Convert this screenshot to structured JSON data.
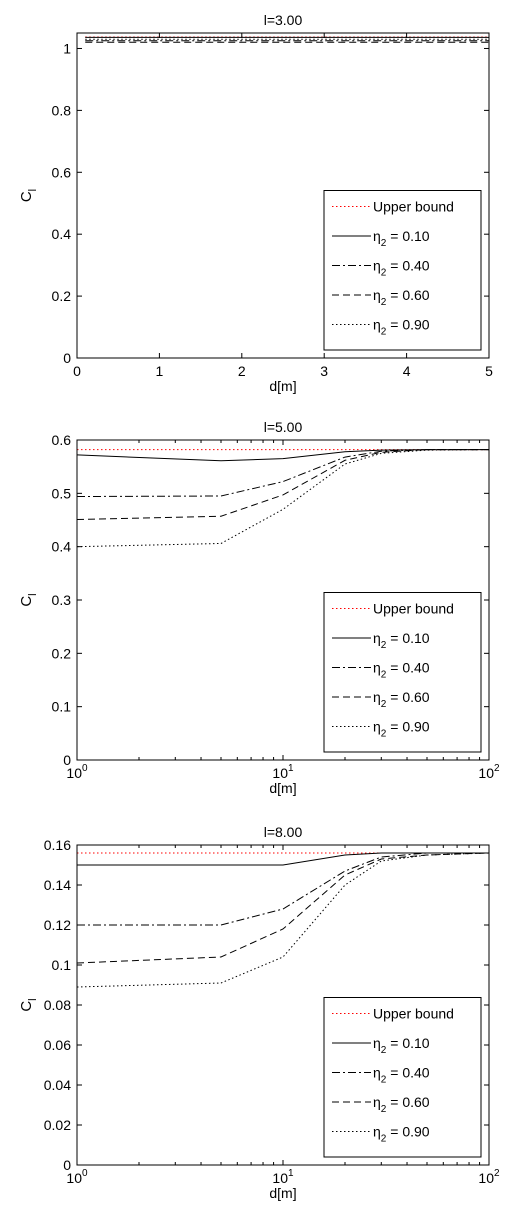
{
  "chart_data": [
    {
      "type": "line",
      "title": "l=3.00",
      "xlabel": "d[m]",
      "ylabel": "C",
      "ylabel_sub": "l",
      "xscale": "linear",
      "xlim": [
        0,
        5
      ],
      "ylim": [
        0,
        1.05
      ],
      "xticks": [
        0,
        1,
        2,
        3,
        4,
        5
      ],
      "xtick_labels": [
        "0",
        "1",
        "2",
        "3",
        "4",
        "5"
      ],
      "yticks": [
        0,
        0.2,
        0.4,
        0.6,
        0.8,
        1
      ],
      "ytick_labels": [
        "0",
        "0.2",
        "0.4",
        "0.6",
        "0.8",
        "1"
      ],
      "grid": false,
      "legend_position": "bottom-right",
      "series": [
        {
          "name": "Upper bound",
          "name_main": "Upper bound",
          "name_sub": "",
          "name_rest": "",
          "style": "dotted",
          "color": "#ff0000",
          "x": [
            0.1,
            5
          ],
          "y": [
            1.037,
            1.037
          ]
        },
        {
          "name": "η2 = 0.10",
          "name_main": "η",
          "name_sub": "2",
          "name_rest": " = 0.10",
          "style": "solid",
          "color": "#000000",
          "x": [
            0.1,
            5
          ],
          "y": [
            1.036,
            1.036
          ]
        },
        {
          "name": "η2 = 0.40",
          "name_main": "η",
          "name_sub": "2",
          "name_rest": " = 0.40",
          "style": "dashdot",
          "color": "#000000",
          "x": [
            0.1,
            5
          ],
          "y": [
            1.025,
            1.025
          ]
        },
        {
          "name": "η2 = 0.60",
          "name_main": "η",
          "name_sub": "2",
          "name_rest": " = 0.60",
          "style": "dashed",
          "color": "#000000",
          "x": [
            0.1,
            5
          ],
          "y": [
            1.02,
            1.02
          ]
        },
        {
          "name": "η2 = 0.90",
          "name_main": "η",
          "name_sub": "2",
          "name_rest": " = 0.90",
          "style": "dotted",
          "color": "#000000",
          "x": [
            0.1,
            5
          ],
          "y": [
            1.03,
            1.03
          ]
        }
      ]
    },
    {
      "type": "line",
      "title": "l=5.00",
      "xlabel": "d[m]",
      "ylabel": "C",
      "ylabel_sub": "l",
      "xscale": "log",
      "xlim": [
        1,
        100
      ],
      "ylim": [
        0,
        0.6
      ],
      "xticks": [
        1,
        10,
        100
      ],
      "xtick_labels_base": [
        "10",
        "10",
        "10"
      ],
      "xtick_labels_exp": [
        "0",
        "1",
        "2"
      ],
      "yticks": [
        0,
        0.1,
        0.2,
        0.3,
        0.4,
        0.5,
        0.6
      ],
      "ytick_labels": [
        "0",
        "0.1",
        "0.2",
        "0.3",
        "0.4",
        "0.5",
        "0.6"
      ],
      "grid": false,
      "legend_position": "bottom-right",
      "series": [
        {
          "name": "Upper bound",
          "name_main": "Upper bound",
          "name_sub": "",
          "name_rest": "",
          "style": "dotted",
          "color": "#ff0000",
          "x": [
            1,
            100
          ],
          "y": [
            0.582,
            0.582
          ]
        },
        {
          "name": "η2 = 0.10",
          "name_main": "η",
          "name_sub": "2",
          "name_rest": " = 0.10",
          "style": "solid",
          "color": "#000000",
          "x": [
            1,
            5,
            10,
            20,
            30,
            50,
            100
          ],
          "y": [
            0.572,
            0.561,
            0.565,
            0.578,
            0.581,
            0.582,
            0.582
          ]
        },
        {
          "name": "η2 = 0.40",
          "name_main": "η",
          "name_sub": "2",
          "name_rest": " = 0.40",
          "style": "dashdot",
          "color": "#000000",
          "x": [
            1,
            5,
            10,
            20,
            30,
            50,
            100
          ],
          "y": [
            0.494,
            0.495,
            0.522,
            0.568,
            0.579,
            0.582,
            0.582
          ]
        },
        {
          "name": "η2 = 0.60",
          "name_main": "η",
          "name_sub": "2",
          "name_rest": " = 0.60",
          "style": "dashed",
          "color": "#000000",
          "x": [
            1,
            5,
            10,
            20,
            30,
            50,
            100
          ],
          "y": [
            0.451,
            0.457,
            0.497,
            0.562,
            0.577,
            0.582,
            0.582
          ]
        },
        {
          "name": "η2 = 0.90",
          "name_main": "η",
          "name_sub": "2",
          "name_rest": " = 0.90",
          "style": "dotted",
          "color": "#000000",
          "x": [
            1,
            5,
            10,
            20,
            30,
            50,
            100
          ],
          "y": [
            0.4,
            0.406,
            0.47,
            0.555,
            0.575,
            0.581,
            0.582
          ]
        }
      ]
    },
    {
      "type": "line",
      "title": "l=8.00",
      "xlabel": "d[m]",
      "ylabel": "C",
      "ylabel_sub": "l",
      "xscale": "log",
      "xlim": [
        1,
        100
      ],
      "ylim": [
        0,
        0.16
      ],
      "xticks": [
        1,
        10,
        100
      ],
      "xtick_labels_base": [
        "10",
        "10",
        "10"
      ],
      "xtick_labels_exp": [
        "0",
        "1",
        "2"
      ],
      "yticks": [
        0,
        0.02,
        0.04,
        0.06,
        0.08,
        0.1,
        0.12,
        0.14,
        0.16
      ],
      "ytick_labels": [
        "0",
        "0.02",
        "0.04",
        "0.06",
        "0.08",
        "0.1",
        "0.12",
        "0.14",
        "0.16"
      ],
      "grid": false,
      "legend_position": "bottom-right",
      "series": [
        {
          "name": "Upper bound",
          "name_main": "Upper bound",
          "name_sub": "",
          "name_rest": "",
          "style": "dotted",
          "color": "#ff0000",
          "x": [
            1,
            100
          ],
          "y": [
            0.156,
            0.156
          ]
        },
        {
          "name": "η2 = 0.10",
          "name_main": "η",
          "name_sub": "2",
          "name_rest": " = 0.10",
          "style": "solid",
          "color": "#000000",
          "x": [
            1,
            5,
            10,
            20,
            30,
            50,
            100
          ],
          "y": [
            0.15,
            0.15,
            0.15,
            0.155,
            0.156,
            0.156,
            0.156
          ]
        },
        {
          "name": "η2 = 0.40",
          "name_main": "η",
          "name_sub": "2",
          "name_rest": " = 0.40",
          "style": "dashdot",
          "color": "#000000",
          "x": [
            1,
            5,
            10,
            20,
            30,
            50,
            100
          ],
          "y": [
            0.12,
            0.12,
            0.128,
            0.147,
            0.154,
            0.156,
            0.156
          ]
        },
        {
          "name": "η2 = 0.60",
          "name_main": "η",
          "name_sub": "2",
          "name_rest": " = 0.60",
          "style": "dashed",
          "color": "#000000",
          "x": [
            1,
            5,
            10,
            20,
            30,
            50,
            100
          ],
          "y": [
            0.101,
            0.104,
            0.118,
            0.145,
            0.153,
            0.155,
            0.156
          ]
        },
        {
          "name": "η2 = 0.90",
          "name_main": "η",
          "name_sub": "2",
          "name_rest": " = 0.90",
          "style": "dotted",
          "color": "#000000",
          "x": [
            1,
            5,
            10,
            20,
            30,
            50,
            100
          ],
          "y": [
            0.089,
            0.091,
            0.104,
            0.14,
            0.152,
            0.155,
            0.156
          ]
        }
      ]
    }
  ]
}
